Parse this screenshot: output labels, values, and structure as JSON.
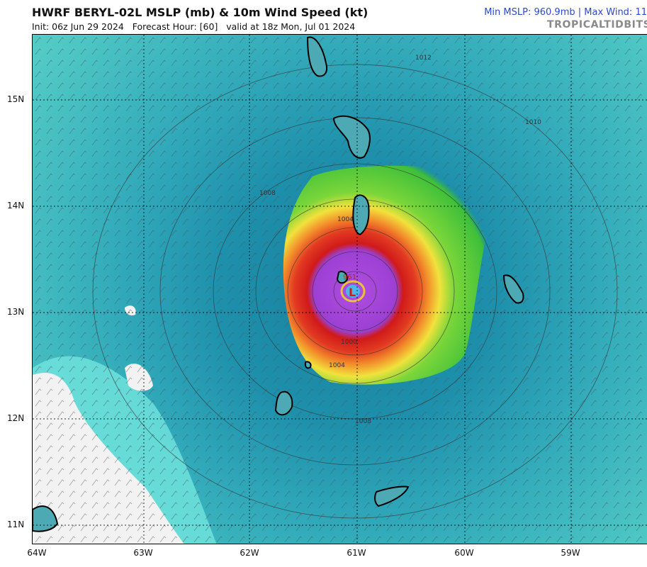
{
  "header": {
    "title": "HWRF BERYL-02L MSLP (mb) & 10m Wind Speed (kt)",
    "subtitle": "Init: 06z Jun 29 2024   Forecast Hour: [60]   valid at 18z Mon, Jul 01 2024",
    "stats": "Min MSLP: 960.9mb | Max Wind: 11",
    "site": "TROPICALTIDBITS.C"
  },
  "map": {
    "lat_labels": [
      "15N",
      "14N",
      "13N",
      "12N",
      "11N"
    ],
    "lon_labels": [
      "64W",
      "63W",
      "62W",
      "61W",
      "60W",
      "59W"
    ],
    "isobar_labels": [
      "1012",
      "1010",
      "1008",
      "1004",
      "1000",
      "1004",
      "1008",
      "961"
    ],
    "low_marker": "L",
    "colors": {
      "ocean_far": "#4cc9c6",
      "ocean_mid": "#2fa8b8",
      "ocean_deep": "#17809f",
      "shelf": "#7fe9e3",
      "land_fill": "#f0f0f0",
      "wind_green": "#5fd13a",
      "wind_yellow": "#f2e93a",
      "wind_orange": "#f29a2a",
      "wind_red": "#d81e1e",
      "eye_purple": "#a54bd9"
    }
  }
}
